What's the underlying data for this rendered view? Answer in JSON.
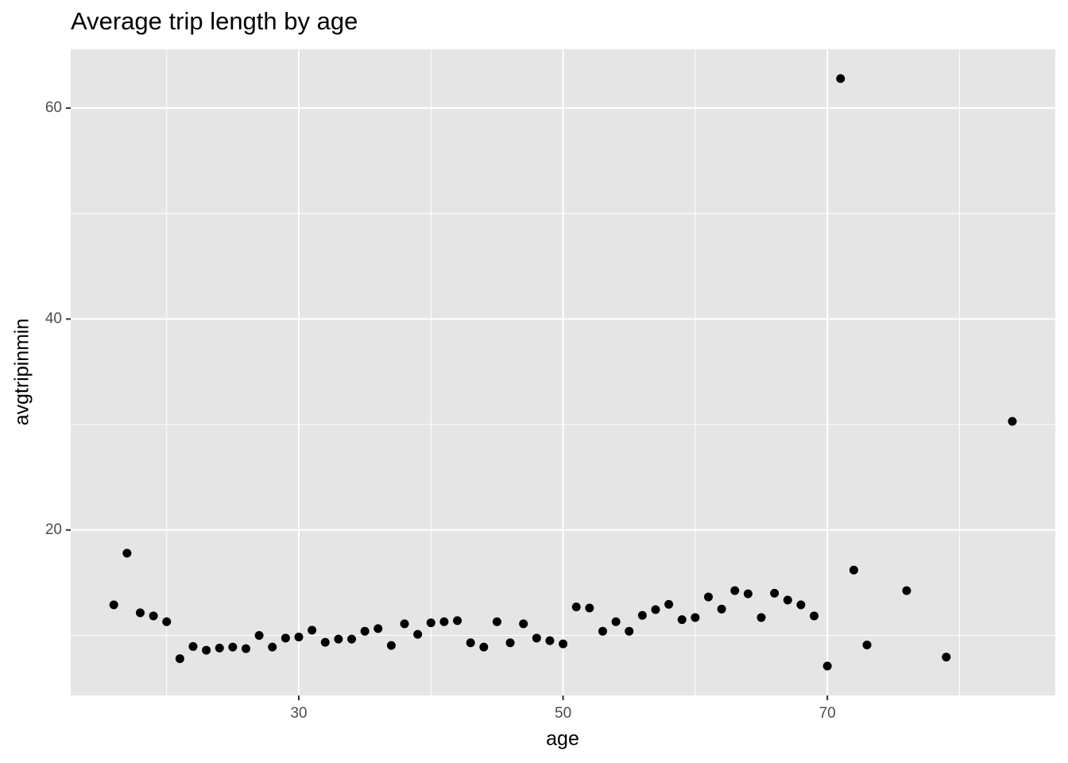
{
  "chart_data": {
    "type": "scatter",
    "title": "Average trip length by age",
    "x_label": "age",
    "y_label": "avgtripinmin",
    "x": [
      16,
      17,
      18,
      19,
      20,
      21,
      22,
      23,
      24,
      25,
      26,
      27,
      28,
      29,
      30,
      31,
      32,
      33,
      34,
      35,
      36,
      37,
      38,
      39,
      40,
      41,
      42,
      43,
      44,
      45,
      46,
      47,
      48,
      49,
      50,
      51,
      52,
      53,
      54,
      55,
      56,
      57,
      58,
      59,
      60,
      61,
      62,
      63,
      64,
      65,
      66,
      67,
      68,
      69,
      70,
      71,
      72,
      73,
      76,
      79,
      84
    ],
    "values": [
      12.9,
      17.8,
      12.15,
      11.85,
      11.3,
      7.8,
      8.95,
      8.6,
      8.8,
      8.9,
      8.75,
      10.0,
      8.9,
      9.75,
      9.85,
      10.5,
      9.35,
      9.65,
      9.65,
      10.4,
      10.65,
      9.05,
      11.1,
      10.1,
      11.2,
      11.3,
      11.4,
      9.3,
      8.9,
      11.3,
      9.3,
      11.1,
      9.75,
      9.5,
      9.2,
      12.7,
      12.6,
      10.4,
      11.3,
      10.4,
      11.9,
      12.45,
      12.95,
      11.5,
      11.7,
      13.65,
      12.5,
      14.25,
      13.95,
      11.7,
      14.0,
      13.35,
      12.9,
      11.85,
      7.1,
      62.8,
      16.2,
      9.1,
      14.25,
      7.95,
      30.3
    ],
    "color": "#000000",
    "xlim": [
      12.74,
      87.25
    ],
    "ylim": [
      4.31,
      65.58
    ],
    "xticks": [
      30,
      50,
      70
    ],
    "yticks": [
      20,
      40,
      60
    ],
    "xminor": [
      20,
      40,
      60,
      80
    ],
    "yminor": [
      10,
      30,
      50
    ],
    "grid": true
  }
}
